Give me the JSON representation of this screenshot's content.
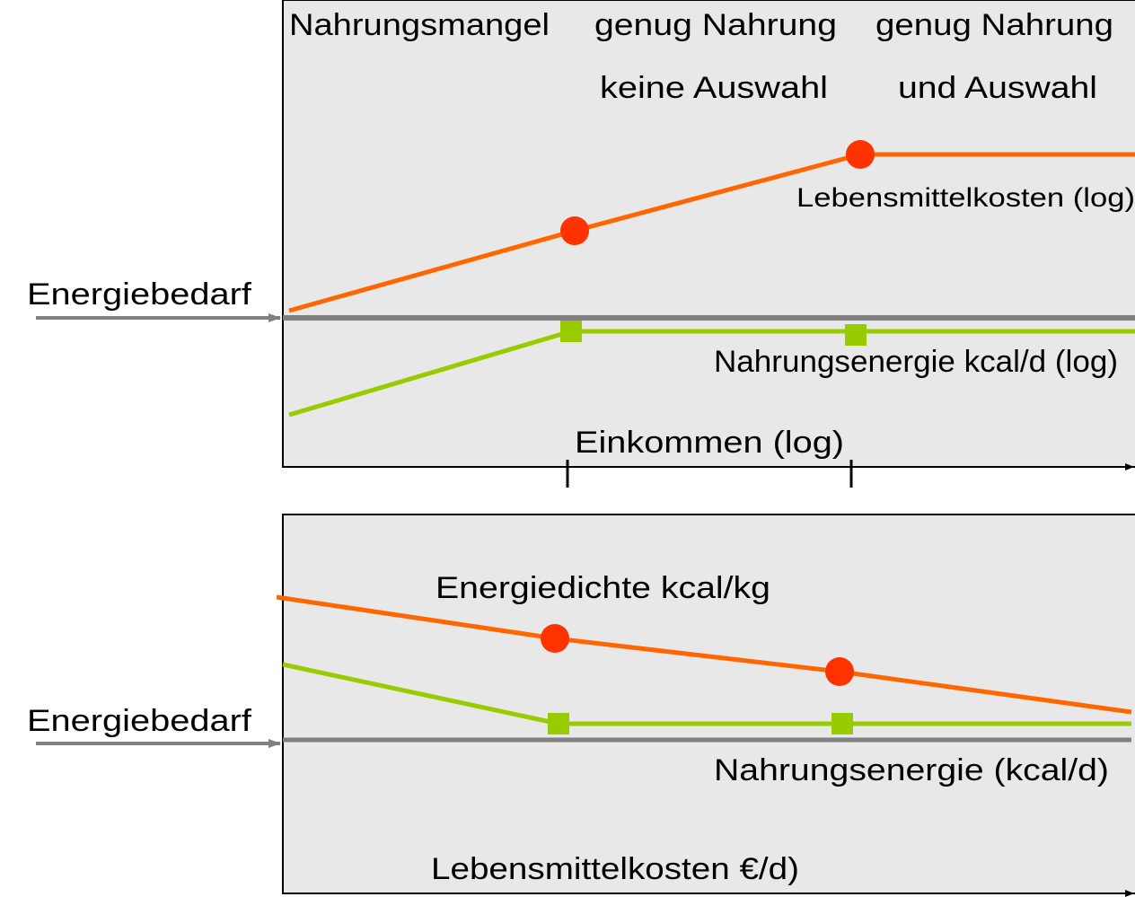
{
  "top": {
    "columns": [
      {
        "lines": [
          "Nahrungsmangel"
        ]
      },
      {
        "lines": [
          "genug Nahrung",
          "keine Auswahl"
        ]
      },
      {
        "lines": [
          "genug Nahrung",
          "und Auswahl"
        ]
      }
    ],
    "energy_need": "Energiebedarf",
    "cost_label": "Lebensmittelkosten (log)",
    "energy_label": "Nahrungsenergie kcal/d (log)",
    "x_axis": "Einkommen (log)"
  },
  "bottom": {
    "energy_need": "Energiebedarf",
    "density_label": "Energiedichte kcal/kg",
    "energy_label": "Nahrungsenergie (kcal/d)",
    "x_axis": "Lebensmittelkosten €/d)"
  }
}
